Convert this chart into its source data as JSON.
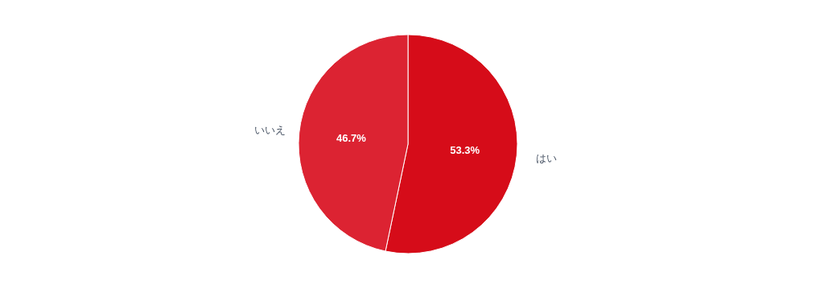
{
  "chart_data": {
    "type": "pie",
    "categories": [
      "はい",
      "いいえ"
    ],
    "values": [
      53.3,
      46.7
    ],
    "colors": [
      "#d60c19",
      "#dc2332"
    ],
    "value_labels": [
      "53.3%",
      "46.7%"
    ],
    "legend": false
  }
}
